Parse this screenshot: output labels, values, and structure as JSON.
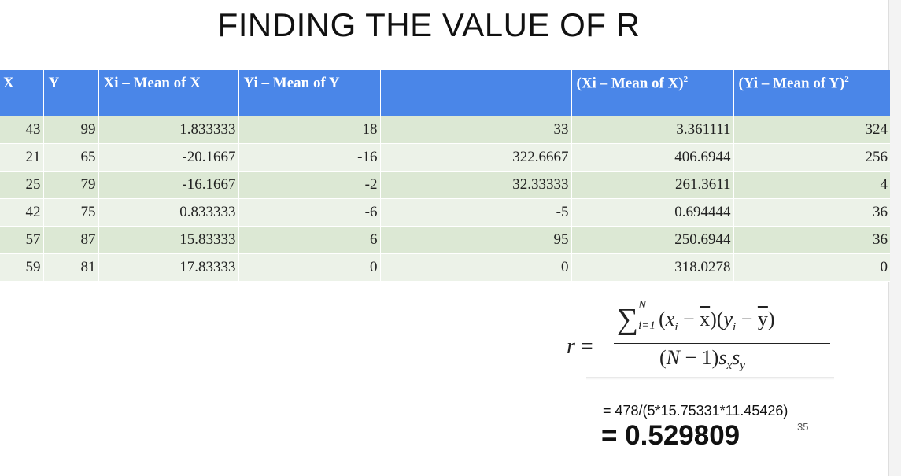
{
  "title": "FINDING THE VALUE OF R",
  "table": {
    "headers": [
      "X",
      "Y",
      "Xi – Mean of X",
      "Yi – Mean of Y",
      "",
      "(Xi – Mean of X)",
      "(Yi – Mean of Y)"
    ],
    "header_superscripts": [
      "",
      "",
      "",
      "",
      "",
      "2",
      "2"
    ],
    "rows": [
      [
        "43",
        "99",
        "1.833333",
        "18",
        "33",
        "3.361111",
        "324"
      ],
      [
        "21",
        "65",
        "-20.1667",
        "-16",
        "322.6667",
        "406.6944",
        "256"
      ],
      [
        "25",
        "79",
        "-16.1667",
        "-2",
        "32.33333",
        "261.3611",
        "4"
      ],
      [
        "42",
        "75",
        "0.833333",
        "-6",
        "-5",
        "0.694444",
        "36"
      ],
      [
        "57",
        "87",
        "15.83333",
        "6",
        "95",
        "250.6944",
        "36"
      ],
      [
        "59",
        "81",
        "17.83333",
        "0",
        "0",
        "318.0278",
        "0"
      ]
    ]
  },
  "formula": {
    "lhs": "r",
    "equals": "=",
    "sum_upper": "N",
    "sum_lower": "i=1",
    "numerator_text": "(x_i − x̄)(y_i − ȳ)",
    "denominator_text": "(N − 1)s_x s_y"
  },
  "calculation": "= 478/(5*15.75331*11.45426)",
  "result": "= 0.529809",
  "page_number": "35"
}
